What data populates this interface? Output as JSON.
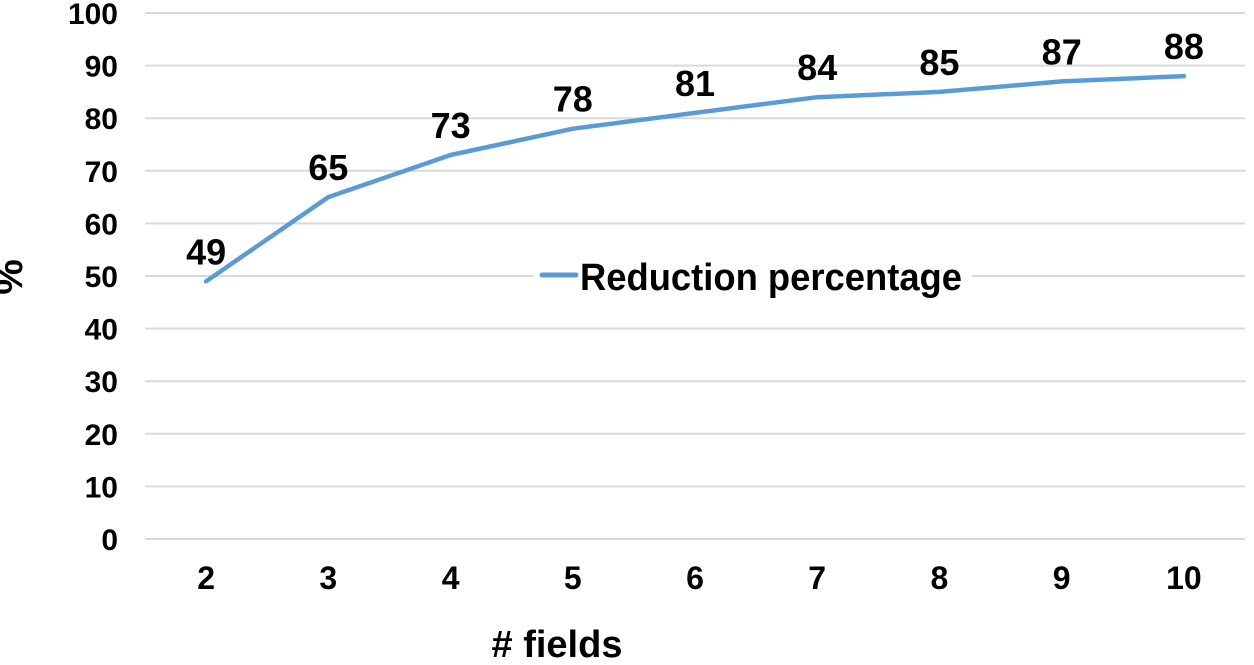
{
  "chart_data": {
    "type": "line",
    "title": "",
    "categories": [
      "2",
      "3",
      "4",
      "5",
      "6",
      "7",
      "8",
      "9",
      "10"
    ],
    "series": [
      {
        "name": "Reduction percentage",
        "values": [
          49,
          65,
          73,
          78,
          81,
          84,
          85,
          87,
          88
        ],
        "color": "#5B9BD5"
      }
    ],
    "xlabel": "# fields",
    "ylabel": "%",
    "ylim": [
      0,
      100
    ],
    "y_ticks": [
      0,
      10,
      20,
      30,
      40,
      50,
      60,
      70,
      80,
      90,
      100
    ],
    "data_labels_shown": true,
    "grid": "horizontal",
    "legend_position": "center-of-plot",
    "colors": {
      "line": "#5B9BD5",
      "gridline": "#D9D9D9",
      "axis_line": "#D9D9D9",
      "text": "#000000",
      "background": "#FFFFFF"
    }
  }
}
